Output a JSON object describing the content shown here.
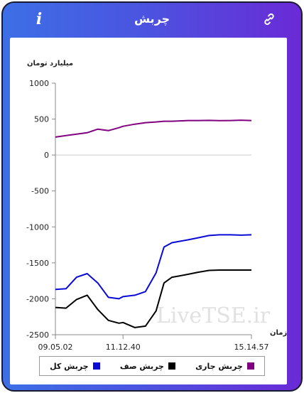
{
  "header": {
    "title": "چربش",
    "info_icon": "info-icon",
    "link_icon": "link-icon"
  },
  "watermark": "LiveTSE.ir",
  "colors": {
    "total": "#0a0ad8",
    "queue": "#000000",
    "current": "#800080",
    "zero_line": "#cccccc"
  },
  "chart_data": {
    "type": "line",
    "ylabel": "میلیارد تومان",
    "xlabel": "زمان",
    "ylim": [
      -2500,
      1000
    ],
    "yticks": [
      1000,
      500,
      0,
      -500,
      -1000,
      -1500,
      -2000,
      -2500
    ],
    "xlim": [
      "09.05.02",
      "15.14.57"
    ],
    "xticks": [
      "09.05.02",
      "11.12.40",
      "15.14.57"
    ],
    "x": [
      "09.05.02",
      "09.25.00",
      "09.45.00",
      "10.05.00",
      "10.25.00",
      "10.45.00",
      "11.05.00",
      "11.12.40",
      "11.35.00",
      "11.55.00",
      "12.15.00",
      "12.30.00",
      "12.45.00",
      "13.00.00",
      "13.15.00",
      "13.35.00",
      "13.55.00",
      "14.15.00",
      "14.35.00",
      "14.55.00",
      "15.14.57"
    ],
    "legend_position": "bottom",
    "series": [
      {
        "name": "چربش کل",
        "key": "total",
        "values": [
          -1870,
          -1860,
          -1700,
          -1650,
          -1780,
          -1980,
          -2000,
          -1970,
          -1950,
          -1900,
          -1640,
          -1280,
          -1220,
          -1200,
          -1180,
          -1150,
          -1120,
          -1110,
          -1110,
          -1115,
          -1110
        ]
      },
      {
        "name": "چربش صف",
        "key": "queue",
        "values": [
          -2120,
          -2130,
          -2010,
          -1950,
          -2150,
          -2300,
          -2340,
          -2330,
          -2400,
          -2380,
          -2170,
          -1780,
          -1700,
          -1680,
          -1660,
          -1630,
          -1605,
          -1600,
          -1600,
          -1600,
          -1600
        ]
      },
      {
        "name": "چربش جاری",
        "key": "current",
        "values": [
          250,
          270,
          290,
          310,
          360,
          340,
          380,
          400,
          430,
          450,
          460,
          470,
          470,
          475,
          480,
          480,
          482,
          478,
          480,
          485,
          480
        ]
      }
    ]
  }
}
